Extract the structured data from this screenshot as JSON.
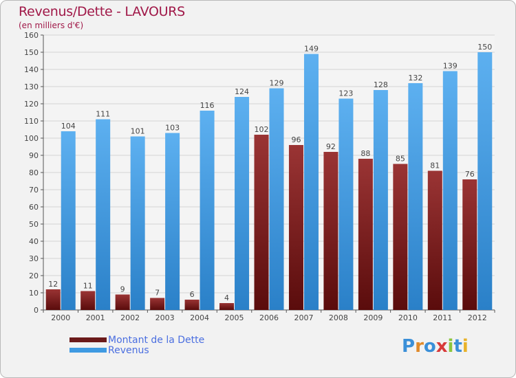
{
  "header": {
    "title": "Revenus/Dette - LAVOURS",
    "subtitle": "(en milliers d'€)"
  },
  "chart_data": {
    "type": "bar",
    "title": "Revenus/Dette - LAVOURS",
    "subtitle": "(en milliers d'€)",
    "xlabel": "",
    "ylabel": "",
    "ylim": [
      0,
      160
    ],
    "yticks": [
      0,
      10,
      20,
      30,
      40,
      50,
      60,
      70,
      80,
      90,
      100,
      110,
      120,
      130,
      140,
      150,
      160
    ],
    "grid": true,
    "categories": [
      "2000",
      "2001",
      "2002",
      "2003",
      "2004",
      "2005",
      "2006",
      "2007",
      "2008",
      "2009",
      "2010",
      "2011",
      "2012"
    ],
    "series": [
      {
        "name": "Montant de la Dette",
        "color": "#6b1a1a",
        "values": [
          12,
          11,
          9,
          7,
          6,
          4,
          102,
          96,
          92,
          88,
          85,
          81,
          76
        ]
      },
      {
        "name": "Revenus",
        "color": "#3f9ae2",
        "values": [
          104,
          111,
          101,
          103,
          116,
          124,
          129,
          149,
          123,
          128,
          132,
          139,
          150
        ]
      }
    ]
  },
  "legend": {
    "placement": "bottom-left",
    "items": [
      {
        "label": "Montant de la Dette",
        "color": "#6b1a1a"
      },
      {
        "label": "Revenus",
        "color": "#3f9ae2"
      }
    ]
  },
  "logo": {
    "letters": [
      {
        "ch": "P",
        "color": "#3a8fd8"
      },
      {
        "ch": "r",
        "color": "#e08a2a"
      },
      {
        "ch": "o",
        "color": "#3a8fd8"
      },
      {
        "ch": "x",
        "color": "#d83a3a"
      },
      {
        "ch": "i",
        "color": "#8cc63e"
      },
      {
        "ch": "t",
        "color": "#3a8fd8"
      },
      {
        "ch": "i",
        "color": "#e8b22a"
      }
    ]
  }
}
